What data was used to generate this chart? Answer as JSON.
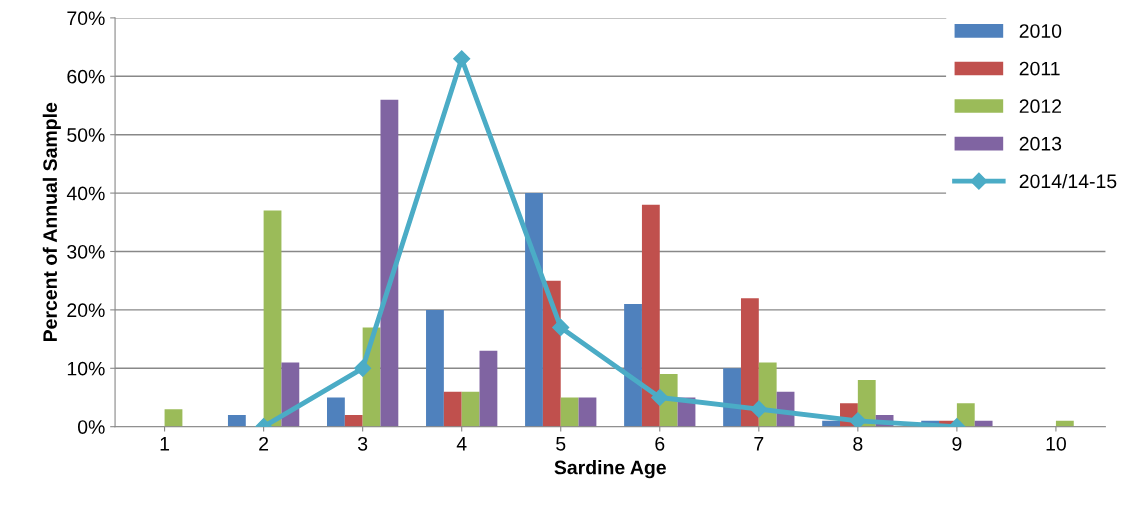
{
  "chart_data": {
    "type": "bar",
    "xlabel": "Sardine Age",
    "ylabel": "Percent of Annual Sample",
    "categories": [
      "1",
      "2",
      "3",
      "4",
      "5",
      "6",
      "7",
      "8",
      "9",
      "10"
    ],
    "series": [
      {
        "name": "2010",
        "color": "#4f81bd",
        "values": [
          0,
          2,
          5,
          20,
          40,
          21,
          10,
          1,
          1,
          0
        ]
      },
      {
        "name": "2011",
        "color": "#c0504d",
        "values": [
          0,
          0,
          2,
          6,
          25,
          38,
          22,
          4,
          1,
          0
        ]
      },
      {
        "name": "2012",
        "color": "#9bbb59",
        "values": [
          3,
          37,
          17,
          6,
          5,
          9,
          11,
          8,
          4,
          1
        ]
      },
      {
        "name": "2013",
        "color": "#8064a2",
        "values": [
          0,
          11,
          56,
          13,
          5,
          5,
          6,
          2,
          1,
          0
        ]
      },
      {
        "name": "2014/14-15",
        "color": "#4bacc6",
        "type": "line",
        "marker": "diamond",
        "values": [
          null,
          0,
          10,
          63,
          17,
          5,
          3,
          1,
          0,
          null
        ]
      }
    ],
    "ylim": [
      0,
      70
    ],
    "yticks": [
      {
        "value": 0,
        "label": "0%"
      },
      {
        "value": 10,
        "label": "10%"
      },
      {
        "value": 20,
        "label": "20%"
      },
      {
        "value": 30,
        "label": "30%"
      },
      {
        "value": 40,
        "label": "40%"
      },
      {
        "value": 50,
        "label": "50%"
      },
      {
        "value": 60,
        "label": "60%"
      },
      {
        "value": 70,
        "label": "70%"
      }
    ],
    "grid": "y",
    "legend": "right"
  }
}
